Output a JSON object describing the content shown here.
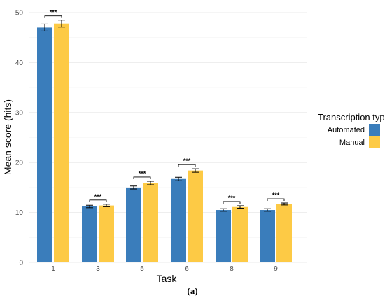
{
  "chart_data": {
    "type": "bar",
    "categories": [
      "1",
      "3",
      "5",
      "6",
      "8",
      "9"
    ],
    "series": [
      {
        "name": "Automated",
        "color": "#3a7dbb",
        "values": [
          47.0,
          11.2,
          15.0,
          16.7,
          10.5,
          10.5
        ],
        "errors": [
          0.7,
          0.25,
          0.3,
          0.35,
          0.25,
          0.25
        ]
      },
      {
        "name": "Manual",
        "color": "#fdca45",
        "values": [
          47.8,
          11.4,
          15.9,
          18.4,
          11.1,
          11.7
        ],
        "errors": [
          0.7,
          0.25,
          0.35,
          0.35,
          0.25,
          0.2
        ]
      }
    ],
    "significance": [
      "***",
      "***",
      "***",
      "***",
      "***",
      "***"
    ],
    "xlabel": "Task",
    "ylabel": "Mean score (hits)",
    "ylim": [
      0,
      50
    ],
    "yticks": [
      0,
      10,
      20,
      30,
      40,
      50
    ],
    "grid": true,
    "legend": {
      "title": "Transcription type",
      "position": "right"
    }
  },
  "caption": "(a)"
}
